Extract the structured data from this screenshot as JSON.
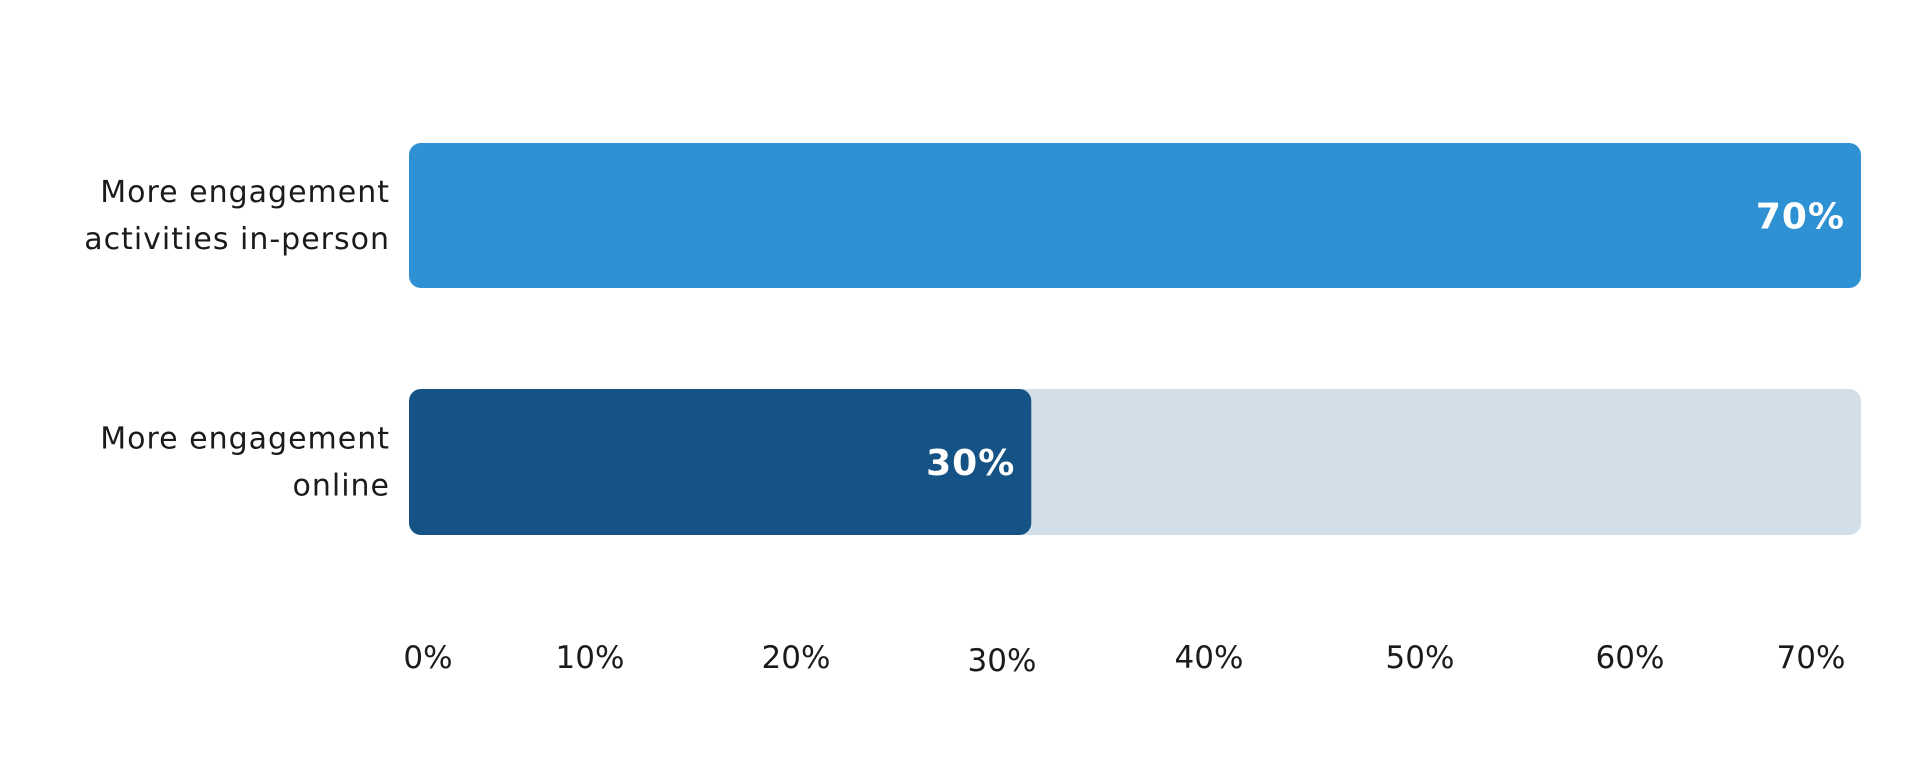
{
  "chart_data": {
    "type": "bar",
    "orientation": "horizontal",
    "categories": [
      "More engagement activities in-person",
      "More engagement online"
    ],
    "category_lines": [
      [
        "More engagement",
        "activities in-person"
      ],
      [
        "More engagement",
        "online"
      ]
    ],
    "values": [
      70,
      30
    ],
    "value_labels": [
      "70%",
      "30%"
    ],
    "xlim": [
      0,
      70
    ],
    "ticks": [
      0,
      10,
      20,
      30,
      40,
      50,
      60,
      70
    ],
    "tick_labels": [
      "0%",
      "10%",
      "20%",
      "30%",
      "40%",
      "50%",
      "60%",
      "70%"
    ],
    "title": "",
    "xlabel": "",
    "ylabel": "",
    "grid": false,
    "legend": "none",
    "colors": {
      "bars": [
        "#2e91d4",
        "#155386"
      ],
      "track": "#d2dee8",
      "data_label": "#ffffff",
      "text": "#1b1b1b"
    }
  }
}
